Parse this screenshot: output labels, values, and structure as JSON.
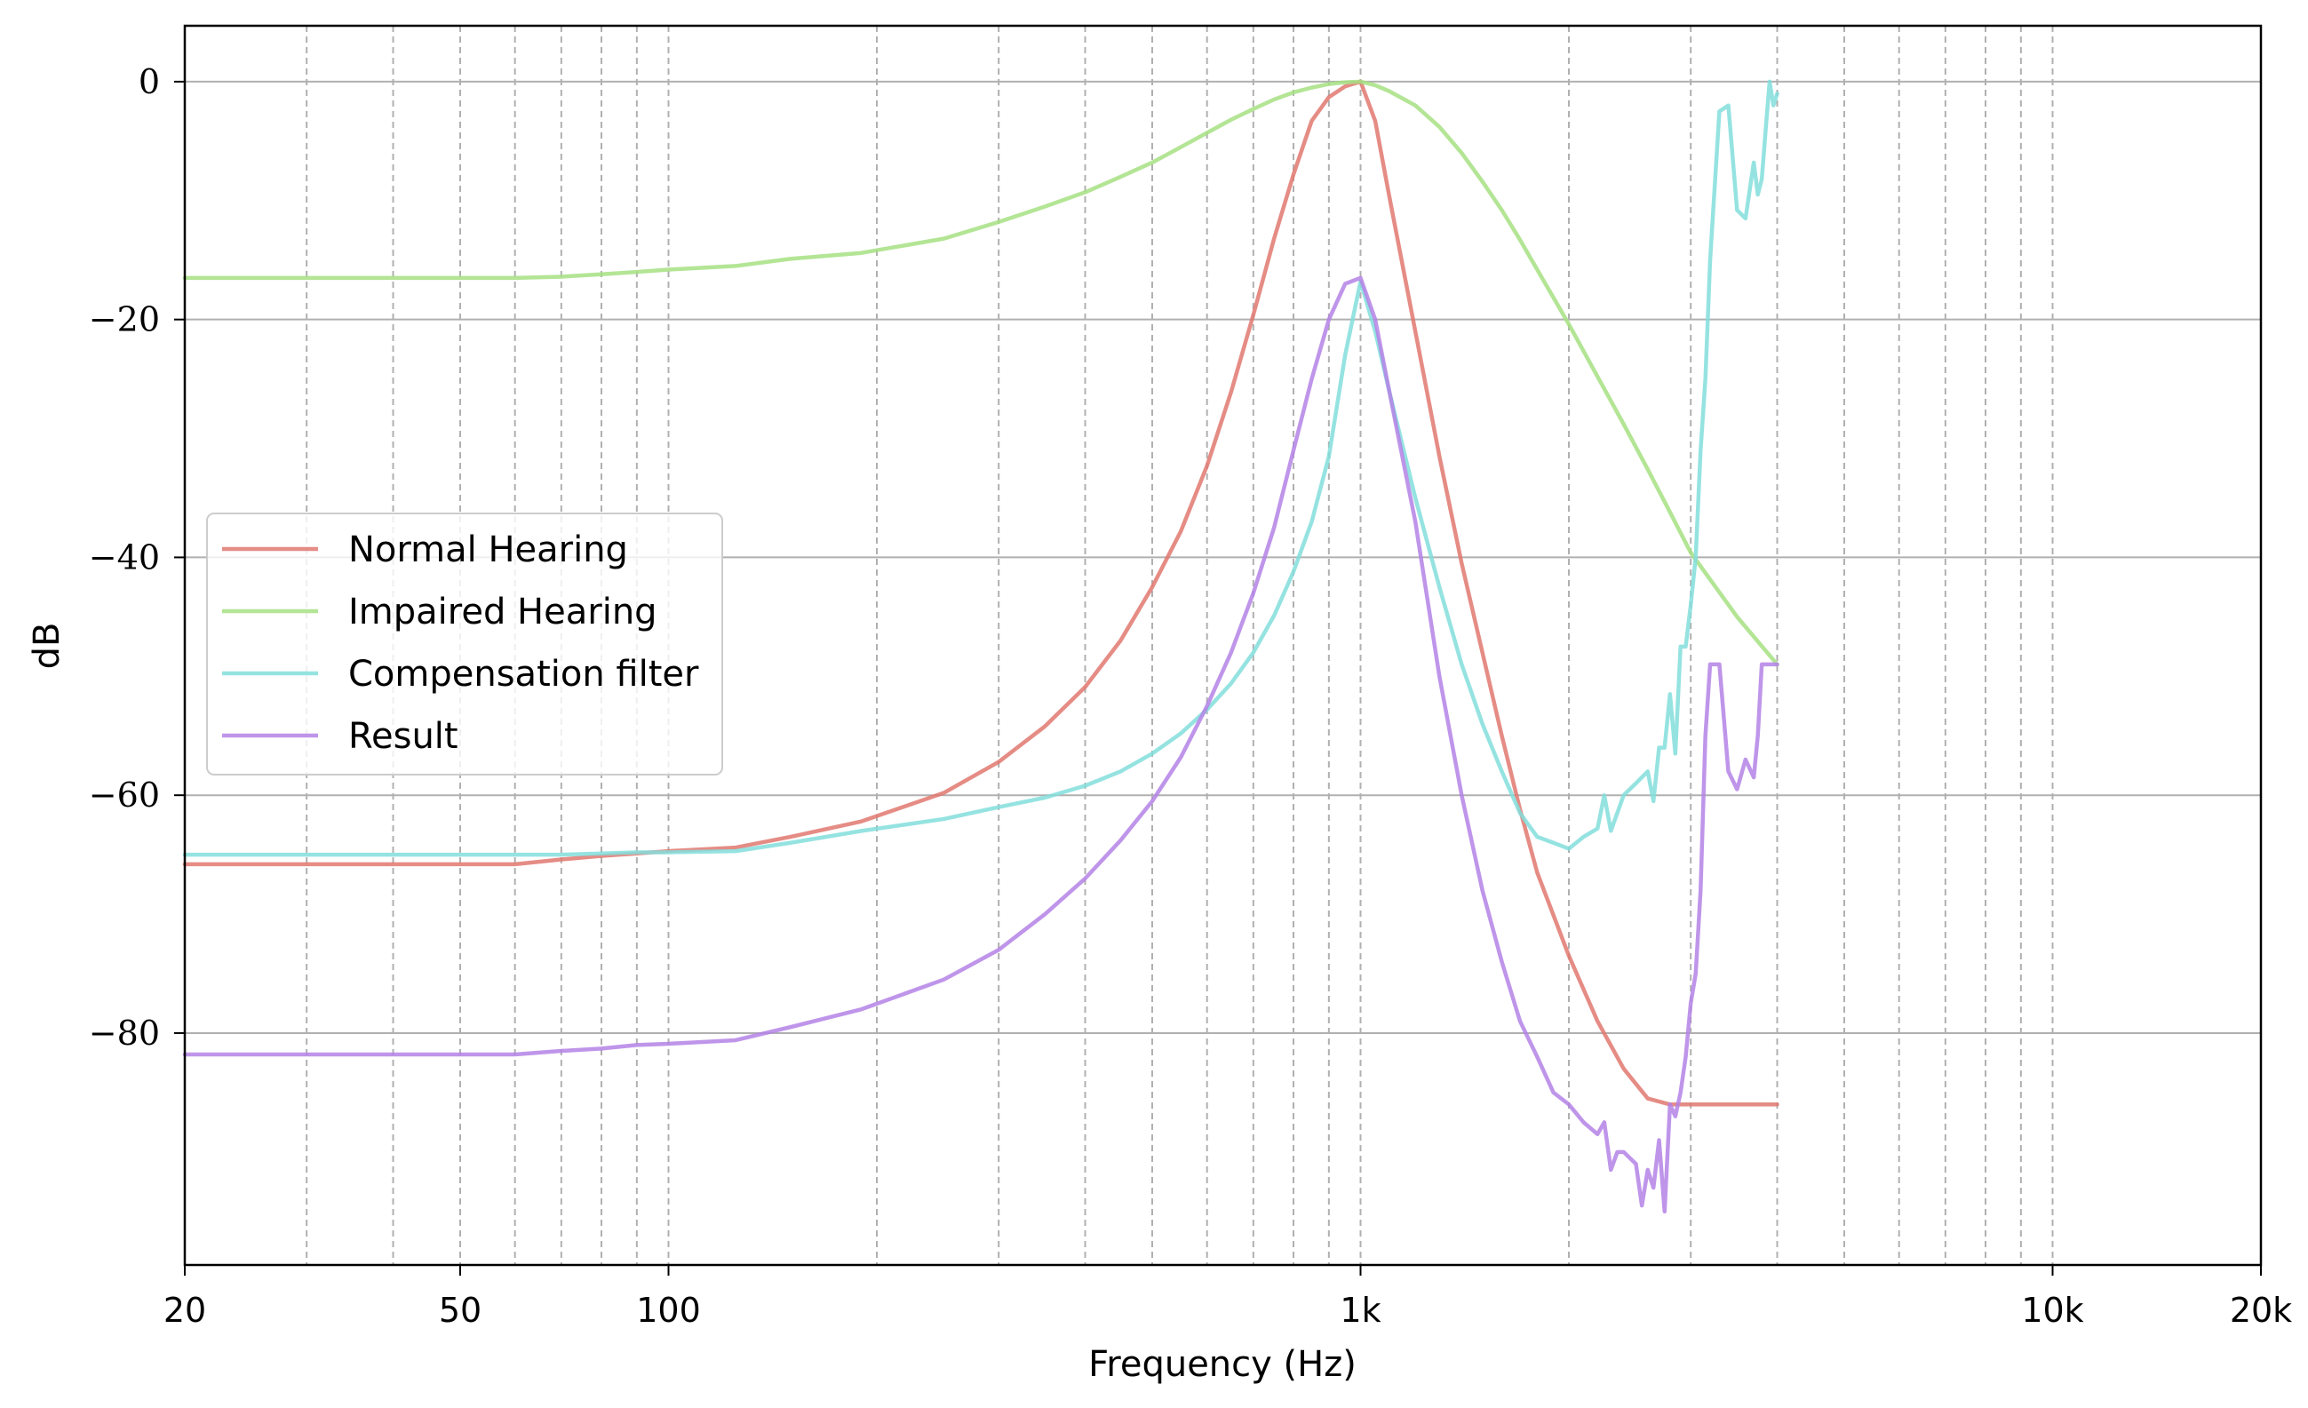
{
  "chart_data": {
    "type": "line",
    "title": "",
    "xlabel": "Frequency (Hz)",
    "ylabel": "dB",
    "xscale": "log",
    "xlim": [
      20,
      20000
    ],
    "ylim": [
      -99.5,
      4.7
    ],
    "xticks": [
      {
        "value": 20,
        "label": "20"
      },
      {
        "value": 50,
        "label": "50"
      },
      {
        "value": 100,
        "label": "100"
      },
      {
        "value": 1000,
        "label": "1k"
      },
      {
        "value": 10000,
        "label": "10k"
      },
      {
        "value": 20000,
        "label": "20k"
      }
    ],
    "yticks": [
      {
        "value": 0,
        "label": "0"
      },
      {
        "value": -20,
        "label": "−20"
      },
      {
        "value": -40,
        "label": "−40"
      },
      {
        "value": -60,
        "label": "−60"
      },
      {
        "value": -80,
        "label": "−80"
      }
    ],
    "x_gridlines": [
      30,
      40,
      50,
      60,
      70,
      80,
      90,
      100,
      200,
      300,
      400,
      500,
      600,
      700,
      800,
      900,
      1000,
      2000,
      3000,
      4000,
      5000,
      6000,
      7000,
      8000,
      9000,
      10000
    ],
    "x_grid_style": "dashed",
    "y_grid_style": "solid",
    "grid": true,
    "legend_position": "center-left",
    "series": [
      {
        "name": "Normal Hearing",
        "color": "#E07870",
        "x": [
          20,
          25,
          30,
          40,
          50,
          60,
          70,
          80,
          90,
          100,
          125,
          150,
          190,
          250,
          300,
          350,
          400,
          450,
          500,
          550,
          600,
          650,
          700,
          750,
          800,
          850,
          900,
          950,
          1000,
          1050,
          1100,
          1200,
          1300,
          1400,
          1500,
          1600,
          1700,
          1800,
          2000,
          2200,
          2400,
          2600,
          2800,
          3000,
          3500,
          4000
        ],
        "y": [
          -65.8,
          -65.8,
          -65.8,
          -65.8,
          -65.8,
          -65.8,
          -65.4,
          -65.1,
          -64.9,
          -64.7,
          -64.4,
          -63.5,
          -62.2,
          -59.8,
          -57.2,
          -54.2,
          -50.9,
          -47.0,
          -42.5,
          -37.8,
          -32.3,
          -26.1,
          -19.6,
          -13.2,
          -7.8,
          -3.3,
          -1.3,
          -0.4,
          0,
          -3.3,
          -9.6,
          -21.0,
          -31.5,
          -40.5,
          -48.0,
          -55.0,
          -61.2,
          -66.5,
          -73.5,
          -79.0,
          -83.0,
          -85.5,
          -86.0,
          -86.0,
          -86.0,
          -86.0
        ]
      },
      {
        "name": "Impaired Hearing",
        "color": "#A6E082",
        "x": [
          20,
          25,
          30,
          40,
          50,
          60,
          70,
          80,
          90,
          100,
          125,
          150,
          190,
          250,
          300,
          350,
          400,
          450,
          500,
          550,
          600,
          650,
          700,
          750,
          800,
          850,
          900,
          950,
          1000,
          1050,
          1100,
          1200,
          1300,
          1400,
          1500,
          1600,
          1700,
          1800,
          2000,
          2200,
          2400,
          2600,
          2800,
          3000,
          3500,
          4000
        ],
        "y": [
          -16.5,
          -16.5,
          -16.5,
          -16.5,
          -16.5,
          -16.5,
          -16.4,
          -16.2,
          -16.0,
          -15.8,
          -15.5,
          -14.9,
          -14.4,
          -13.2,
          -11.8,
          -10.5,
          -9.3,
          -8.0,
          -6.8,
          -5.5,
          -4.3,
          -3.2,
          -2.3,
          -1.5,
          -0.9,
          -0.5,
          -0.2,
          -0.05,
          0,
          -0.3,
          -0.8,
          -2.0,
          -3.8,
          -6.0,
          -8.4,
          -10.8,
          -13.3,
          -15.8,
          -20.4,
          -24.8,
          -28.8,
          -32.6,
          -36.2,
          -39.6,
          -45.0,
          -49.0
        ]
      },
      {
        "name": "Compensation filter",
        "color": "#82DEDC",
        "x": [
          20,
          25,
          30,
          40,
          50,
          60,
          70,
          80,
          90,
          100,
          125,
          150,
          190,
          250,
          300,
          350,
          400,
          450,
          500,
          550,
          600,
          650,
          700,
          750,
          800,
          850,
          900,
          950,
          1000,
          1050,
          1100,
          1200,
          1300,
          1400,
          1500,
          1600,
          1700,
          1800,
          1900,
          2000,
          2100,
          2200,
          2250,
          2300,
          2400,
          2500,
          2600,
          2650,
          2700,
          2750,
          2800,
          2850,
          2900,
          2950,
          3000,
          3050,
          3100,
          3150,
          3200,
          3300,
          3400,
          3500,
          3600,
          3700,
          3750,
          3800,
          3850,
          3900,
          3950,
          4000
        ],
        "y": [
          -65.0,
          -65.0,
          -65.0,
          -65.0,
          -65.0,
          -65.0,
          -65.0,
          -64.9,
          -64.8,
          -64.8,
          -64.7,
          -64.0,
          -63.0,
          -62.0,
          -61.0,
          -60.2,
          -59.2,
          -58.0,
          -56.5,
          -54.8,
          -52.8,
          -50.6,
          -48.0,
          -44.9,
          -41.2,
          -37.0,
          -31.5,
          -23.0,
          -16.8,
          -21.0,
          -26.0,
          -35.0,
          -42.5,
          -49.0,
          -54.0,
          -58.0,
          -61.5,
          -63.5,
          -64.0,
          -64.5,
          -63.5,
          -62.8,
          -60.0,
          -63.0,
          -60.0,
          -59.0,
          -58.0,
          -60.5,
          -56.0,
          -56.0,
          -51.5,
          -56.5,
          -47.5,
          -47.5,
          -44.0,
          -40.0,
          -31.0,
          -25.0,
          -15.0,
          -2.5,
          -2.0,
          -10.8,
          -11.5,
          -6.8,
          -9.5,
          -8.2,
          -4.0,
          0.0,
          -2.0,
          -1.0
        ]
      },
      {
        "name": "Result",
        "color": "#B482E6",
        "x": [
          20,
          25,
          30,
          40,
          50,
          60,
          70,
          80,
          90,
          100,
          125,
          150,
          190,
          250,
          300,
          350,
          400,
          450,
          500,
          550,
          600,
          650,
          700,
          750,
          800,
          850,
          900,
          950,
          1000,
          1050,
          1100,
          1200,
          1300,
          1400,
          1500,
          1600,
          1700,
          1800,
          1900,
          2000,
          2100,
          2200,
          2250,
          2300,
          2350,
          2400,
          2500,
          2550,
          2600,
          2650,
          2700,
          2750,
          2800,
          2850,
          2900,
          2950,
          3000,
          3050,
          3100,
          3150,
          3200,
          3300,
          3400,
          3500,
          3600,
          3700,
          3750,
          3800,
          3850,
          3900,
          3950,
          4000
        ],
        "y": [
          -81.8,
          -81.8,
          -81.8,
          -81.8,
          -81.8,
          -81.8,
          -81.5,
          -81.3,
          -81.0,
          -80.9,
          -80.6,
          -79.5,
          -78.0,
          -75.5,
          -73.0,
          -70.0,
          -67.0,
          -63.8,
          -60.5,
          -56.8,
          -52.5,
          -48.0,
          -43.0,
          -37.5,
          -31.0,
          -25.0,
          -20.0,
          -17.0,
          -16.5,
          -20.0,
          -26.0,
          -37.0,
          -50.0,
          -60.0,
          -68.0,
          -74.0,
          -79.0,
          -82.0,
          -85.0,
          -86.0,
          -87.5,
          -88.5,
          -87.5,
          -91.5,
          -90.0,
          -90.0,
          -91.0,
          -94.5,
          -91.5,
          -93.0,
          -89.0,
          -95.0,
          -86.0,
          -87.0,
          -85.0,
          -82.0,
          -77.5,
          -75.0,
          -68.0,
          -55.0,
          -49.0,
          -49.0,
          -58.0,
          -59.5,
          -57.0,
          -58.5,
          -55.0,
          -49.0,
          -49.0,
          -49.0,
          -49.0,
          -49.0
        ]
      }
    ]
  }
}
